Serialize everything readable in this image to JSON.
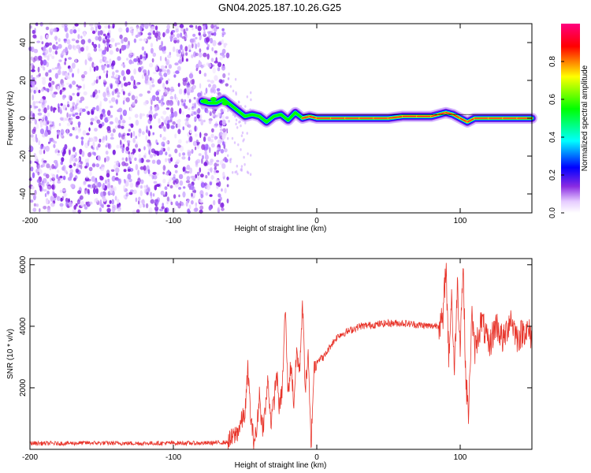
{
  "title": "GN04.2025.187.10.26.G25",
  "colors": {
    "snr_line": "#e8352b",
    "specgram_low": "#8a2be2",
    "specgram_core": "#ff2020",
    "colormap_stops": [
      "#ffffff",
      "#e6ccff",
      "#8a2be2",
      "#0000ff",
      "#00ffff",
      "#00ff00",
      "#ffff00",
      "#ff0000",
      "#ff007f"
    ]
  },
  "chart_data": [
    {
      "type": "heatmap",
      "name": "spectrogram",
      "xlabel": "Height of straight line (km)",
      "ylabel": "Frequency (Hz)",
      "xlim": [
        -200,
        150
      ],
      "ylim": [
        -50,
        50
      ],
      "xticks": [
        -200,
        -100,
        0,
        100
      ],
      "yticks": [
        -40,
        -20,
        0,
        20,
        40
      ],
      "noise_region_x": [
        -200,
        -62
      ],
      "signal_start_x": -80,
      "ridge": {
        "x": [
          -80,
          -75,
          -70,
          -65,
          -60,
          -55,
          -50,
          -45,
          -40,
          -35,
          -30,
          -25,
          -20,
          -15,
          -10,
          -5,
          0,
          10,
          20,
          30,
          40,
          50,
          60,
          70,
          80,
          85,
          90,
          95,
          100,
          105,
          110,
          120,
          130,
          140,
          150
        ],
        "y": [
          9,
          8,
          8,
          10,
          7,
          4,
          1,
          2,
          1,
          -2,
          1,
          2,
          -1,
          3,
          0,
          1,
          0,
          0,
          0,
          0,
          0,
          0,
          1,
          1,
          1,
          2,
          3,
          2,
          0,
          -2,
          0,
          0,
          0,
          0,
          0
        ]
      },
      "colorbar": {
        "label": "Normalized spectral amplitude",
        "range": [
          0,
          1
        ],
        "ticks": [
          "0.0",
          "0.2",
          "0.4",
          "0.6",
          "0.8"
        ]
      }
    },
    {
      "type": "line",
      "name": "snr",
      "xlabel": "Height of straight line (km)",
      "ylabel": "SNR (10 * v/v)",
      "xlim": [
        -200,
        150
      ],
      "ylim": [
        0,
        6200
      ],
      "xticks": [
        -200,
        -100,
        0,
        100
      ],
      "yticks": [
        2000,
        4000,
        6000
      ],
      "series": [
        {
          "x": [
            -200,
            -180,
            -160,
            -140,
            -120,
            -100,
            -80,
            -70,
            -62,
            -58,
            -55,
            -50,
            -48,
            -46,
            -44,
            -42,
            -40,
            -38,
            -36,
            -34,
            -32,
            -30,
            -28,
            -26,
            -24,
            -22,
            -20,
            -18,
            -16,
            -14,
            -12,
            -10,
            -8,
            -6,
            -4,
            -2,
            0,
            5,
            10,
            15,
            20,
            25,
            30,
            40,
            50,
            60,
            70,
            80,
            85,
            88,
            90,
            92,
            94,
            96,
            98,
            100,
            102,
            104,
            106,
            108,
            110,
            115,
            120,
            125,
            130,
            135,
            140,
            145,
            150
          ],
          "y": [
            200,
            190,
            210,
            200,
            195,
            205,
            200,
            215,
            230,
            400,
            600,
            1200,
            2600,
            1000,
            300,
            500,
            1800,
            700,
            1200,
            2300,
            900,
            1500,
            2500,
            1300,
            2000,
            4600,
            1800,
            2800,
            1500,
            3200,
            2500,
            4800,
            2000,
            3000,
            100,
            2600,
            2900,
            3000,
            3400,
            3700,
            3800,
            3900,
            4000,
            4050,
            4100,
            4100,
            4050,
            4000,
            4050,
            4150,
            6100,
            3000,
            5000,
            2500,
            5400,
            3500,
            6000,
            2200,
            1100,
            4500,
            3200,
            4200,
            3300,
            4100,
            3500,
            4300,
            3600,
            3900,
            3700
          ]
        }
      ]
    }
  ]
}
